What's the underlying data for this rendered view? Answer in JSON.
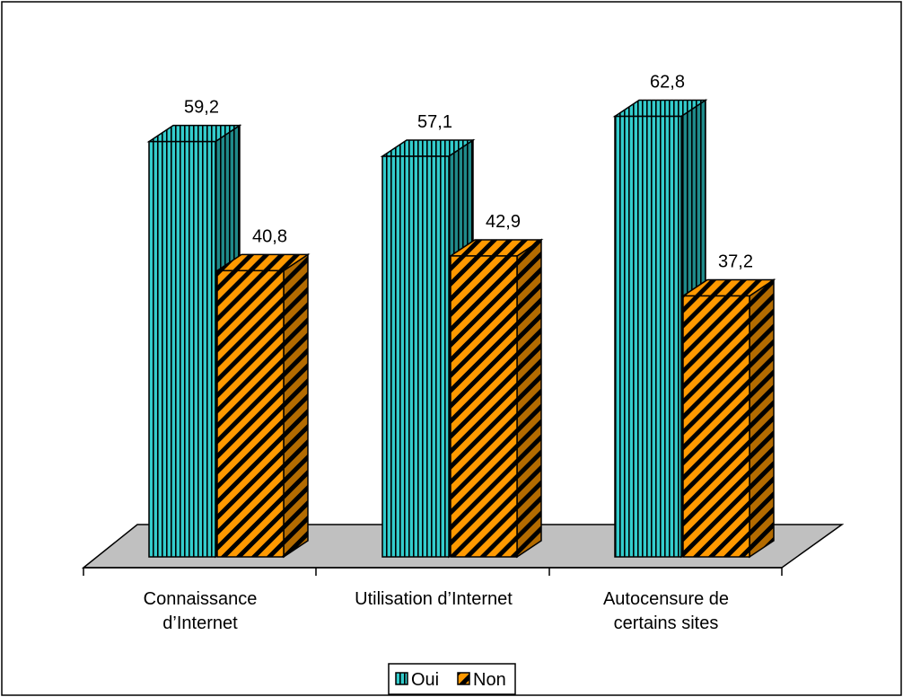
{
  "chart_data": {
    "type": "bar",
    "subtype": "3d-clustered-column",
    "categories": [
      [
        "Connaissance",
        "d’Internet"
      ],
      [
        "Utilisation d’Internet"
      ],
      [
        "Autocensure de",
        "certains sites"
      ]
    ],
    "series": [
      {
        "name": "Oui",
        "values": [
          59.2,
          57.1,
          62.8
        ],
        "labels": [
          "59,2",
          "57,1",
          "62,8"
        ],
        "color": "#33CCCC",
        "pattern": "vertical-stripes"
      },
      {
        "name": "Non",
        "values": [
          40.8,
          42.9,
          37.2
        ],
        "labels": [
          "40,8",
          "42,9",
          "37,2"
        ],
        "color": "#FF9900",
        "pattern": "diagonal-stripes"
      }
    ],
    "ylim": [
      0,
      70
    ],
    "grid": false,
    "legend": "bottom-center",
    "floor_color": "#C0C0C0"
  }
}
